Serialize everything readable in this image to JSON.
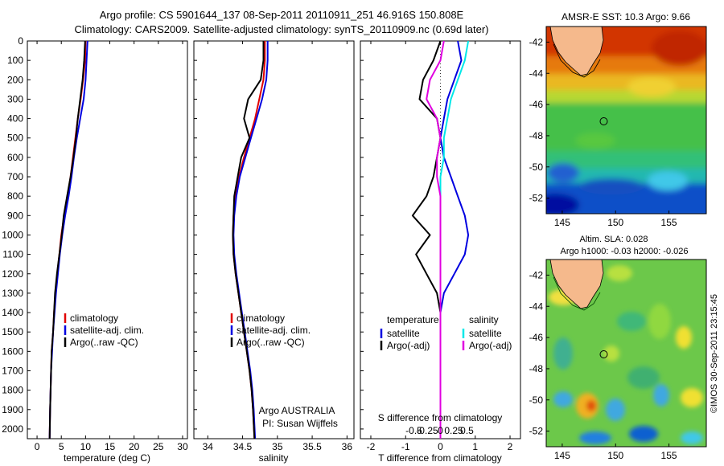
{
  "title_line1": "Argo profile: CS 5901644_137 08-Sep-2011 20110911_251 46.916S 150.808E",
  "title_line2": "Climatology: CARS2009. Satellite-adjusted climatology: synTS_20110909.nc (0.69d later)",
  "sst_title": "AMSR-E SST: 10.3 Argo: 9.66",
  "sla_title1": "Altim. SLA: 0.028",
  "sla_title2": "Argo h1000: -0.03 h2000: -0.026",
  "footer_vertical": "©IMOS 30-Sep-2011 23:15:45",
  "colors": {
    "climatology": "#e00000",
    "satellite": "#0000e0",
    "argo": "#000000",
    "sal_satellite": "#00e8e8",
    "sal_argo": "#e000e0",
    "land": "#f5b98c"
  },
  "chart_data": [
    {
      "type": "line",
      "xlabel": "temperature (deg C)",
      "ylabel": "",
      "xlim": [
        -2,
        31
      ],
      "ylim": [
        2050,
        0
      ],
      "xticks": [
        0,
        5,
        10,
        15,
        20,
        25,
        30
      ],
      "yticks": [
        0,
        100,
        200,
        300,
        400,
        500,
        600,
        700,
        800,
        900,
        1000,
        1100,
        1200,
        1300,
        1400,
        1500,
        1600,
        1700,
        1800,
        1900,
        2000
      ],
      "legend": [
        "climatology",
        "satellite-adj. clim.",
        "Argo(..raw -QC)"
      ],
      "legend_position": "lower-right",
      "series": [
        {
          "name": "climatology",
          "color_key": "climatology",
          "x": [
            10.0,
            9.9,
            9.5,
            9.0,
            8.4,
            7.9,
            7.4,
            6.9,
            6.3,
            5.6,
            5.0,
            4.6,
            4.2,
            3.8,
            3.5,
            3.3,
            3.0,
            2.9,
            2.8,
            2.7,
            2.6
          ],
          "y": [
            0,
            100,
            200,
            300,
            400,
            500,
            600,
            700,
            800,
            900,
            1000,
            1100,
            1200,
            1300,
            1400,
            1500,
            1600,
            1700,
            1800,
            1900,
            2050
          ]
        },
        {
          "name": "satellite-adj. clim.",
          "color_key": "satellite",
          "x": [
            10.4,
            10.2,
            10.0,
            9.6,
            8.9,
            8.2,
            7.6,
            7.1,
            6.5,
            5.8,
            5.2,
            4.7,
            4.3,
            3.9,
            3.6,
            3.3,
            3.1,
            2.9,
            2.8,
            2.7,
            2.6
          ],
          "y": [
            0,
            100,
            200,
            300,
            400,
            500,
            600,
            700,
            800,
            900,
            1000,
            1100,
            1200,
            1300,
            1400,
            1500,
            1600,
            1700,
            1800,
            1900,
            2050
          ]
        },
        {
          "name": "Argo(..raw -QC)",
          "color_key": "argo",
          "x": [
            9.9,
            9.7,
            9.4,
            8.9,
            8.4,
            8.0,
            7.5,
            6.9,
            6.2,
            5.5,
            5.1,
            4.6,
            4.1,
            3.7,
            3.5,
            3.3,
            3.0,
            2.9,
            2.8,
            2.7,
            2.6
          ],
          "y": [
            0,
            100,
            200,
            300,
            400,
            500,
            600,
            700,
            800,
            900,
            1000,
            1100,
            1200,
            1300,
            1400,
            1500,
            1600,
            1700,
            1800,
            1900,
            2050
          ]
        }
      ]
    },
    {
      "type": "line",
      "xlabel": "salinity",
      "ylabel": "",
      "xlim": [
        33.8,
        36.1
      ],
      "ylim": [
        2050,
        0
      ],
      "xticks": [
        34,
        34.5,
        35,
        35.5,
        36
      ],
      "xticklabels": [
        "34",
        "34.5",
        "35",
        "35.5",
        "36"
      ],
      "legend": [
        "climatology",
        "satellite-adj. clim.",
        "Argo(..raw -QC)"
      ],
      "legend_position": "lower-right",
      "annotation_line1": "Argo AUSTRALIA",
      "annotation_line2": "PI: Susan Wijffels",
      "series": [
        {
          "name": "climatology",
          "color_key": "climatology",
          "x": [
            34.82,
            34.82,
            34.8,
            34.74,
            34.68,
            34.6,
            34.52,
            34.45,
            34.4,
            34.37,
            34.36,
            34.37,
            34.4,
            34.44,
            34.48,
            34.52,
            34.56,
            34.6,
            34.63,
            34.65,
            34.67
          ],
          "y": [
            0,
            100,
            200,
            300,
            400,
            500,
            600,
            700,
            800,
            900,
            1000,
            1100,
            1200,
            1300,
            1400,
            1500,
            1600,
            1700,
            1800,
            1900,
            2050
          ]
        },
        {
          "name": "satellite-adj. clim.",
          "color_key": "satellite",
          "x": [
            34.86,
            34.86,
            34.84,
            34.78,
            34.7,
            34.62,
            34.54,
            34.46,
            34.41,
            34.38,
            34.37,
            34.38,
            34.41,
            34.45,
            34.49,
            34.53,
            34.57,
            34.61,
            34.64,
            34.66,
            34.68
          ],
          "y": [
            0,
            100,
            200,
            300,
            400,
            500,
            600,
            700,
            800,
            900,
            1000,
            1100,
            1200,
            1300,
            1400,
            1500,
            1600,
            1700,
            1800,
            1900,
            2050
          ]
        },
        {
          "name": "Argo(..raw -QC)",
          "color_key": "argo",
          "x": [
            34.8,
            34.8,
            34.76,
            34.58,
            34.52,
            34.6,
            34.48,
            34.43,
            34.38,
            34.37,
            34.36,
            34.37,
            34.4,
            34.44,
            34.48,
            34.52,
            34.56,
            34.6,
            34.63,
            34.65,
            34.67
          ],
          "y": [
            0,
            100,
            200,
            300,
            400,
            500,
            600,
            700,
            800,
            900,
            1000,
            1100,
            1200,
            1300,
            1400,
            1500,
            1600,
            1700,
            1800,
            1900,
            2050
          ]
        }
      ]
    },
    {
      "type": "line",
      "xlabel": "T difference from climatology",
      "x2label": "S difference from climatology",
      "ylabel": "",
      "xlim": [
        -2.3,
        2.3
      ],
      "ylim": [
        2050,
        0
      ],
      "xticks": [
        -2,
        -1,
        0,
        1,
        2
      ],
      "x2ticks": [
        -0.5,
        -0.25,
        0,
        0.25,
        0.5
      ],
      "x2ticklabels": [
        "-0.5",
        "-0.25",
        "0",
        "0.25",
        "0.5"
      ],
      "legend_header_left": "temperature",
      "legend_header_right": "salinity",
      "legend": [
        "satellite",
        "Argo(-adj)",
        "satellite",
        "Argo(-adj)"
      ],
      "legend_position": "lower-right",
      "series": [
        {
          "name": "satellite",
          "group": "temperature",
          "color_key": "satellite",
          "x": [
            0.5,
            0.6,
            0.4,
            0.2,
            0.1,
            0.0,
            0.1,
            0.3,
            0.5,
            0.7,
            0.8,
            0.7,
            0.4,
            0.1,
            0.0,
            0.0,
            0.0,
            0.0,
            0.0,
            0.0,
            0.0
          ],
          "y": [
            0,
            100,
            200,
            300,
            400,
            500,
            600,
            700,
            800,
            900,
            1000,
            1100,
            1200,
            1300,
            1400,
            1500,
            1600,
            1700,
            1800,
            1900,
            2050
          ]
        },
        {
          "name": "Argo(-adj)",
          "group": "temperature",
          "color_key": "argo",
          "x": [
            0.0,
            -0.2,
            -0.5,
            -0.6,
            -0.1,
            0.0,
            -0.1,
            -0.2,
            -0.4,
            -0.8,
            -0.3,
            -0.7,
            -0.4,
            -0.1,
            0.0,
            0.0,
            0.0,
            0.0,
            0.0,
            0.0,
            0.0
          ],
          "y": [
            0,
            100,
            200,
            300,
            400,
            500,
            600,
            700,
            800,
            900,
            1000,
            1100,
            1200,
            1300,
            1400,
            1500,
            1600,
            1700,
            1800,
            1900,
            2050
          ]
        },
        {
          "name": "satellite",
          "group": "salinity",
          "color_key": "sal_satellite",
          "x": [
            0.8,
            0.7,
            0.5,
            0.3,
            0.2,
            0.1,
            0.1,
            0.0,
            0.0,
            0.0,
            0.0,
            0.0,
            0.0,
            0.0,
            0.0,
            0.0,
            0.0,
            0.0,
            0.0,
            0.0,
            0.0
          ],
          "y": [
            0,
            100,
            200,
            300,
            400,
            500,
            600,
            700,
            800,
            900,
            1000,
            1100,
            1200,
            1300,
            1400,
            1500,
            1600,
            1700,
            1800,
            1900,
            2050
          ]
        },
        {
          "name": "Argo(-adj)",
          "group": "salinity",
          "color_key": "sal_argo",
          "x": [
            0.1,
            0.0,
            -0.3,
            -0.4,
            -0.1,
            0.0,
            -0.1,
            -0.1,
            0.0,
            0.0,
            0.0,
            0.0,
            0.0,
            0.0,
            0.0,
            0.0,
            0.0,
            0.0,
            0.0,
            0.0,
            0.0
          ],
          "y": [
            0,
            100,
            200,
            300,
            400,
            500,
            600,
            700,
            800,
            900,
            1000,
            1100,
            1200,
            1300,
            1400,
            1500,
            1600,
            1700,
            1800,
            1900,
            2050
          ]
        }
      ]
    },
    {
      "type": "heatmap",
      "title": "AMSR-E SST: 10.3 Argo: 9.66",
      "xlim": [
        143.5,
        158.5
      ],
      "ylim": [
        -53,
        -41
      ],
      "xticks": [
        145,
        150,
        155
      ],
      "yticks": [
        -42,
        -44,
        -46,
        -48,
        -50,
        -52
      ],
      "marker": {
        "lon": 150.808,
        "lat": -46.916
      }
    },
    {
      "type": "heatmap",
      "title": "Altim. SLA: 0.028",
      "subtitle": "Argo h1000: -0.03 h2000: -0.026",
      "xlim": [
        143.5,
        158.5
      ],
      "ylim": [
        -53,
        -41
      ],
      "xticks": [
        145,
        150,
        155
      ],
      "yticks": [
        -42,
        -44,
        -46,
        -48,
        -50,
        -52
      ],
      "marker": {
        "lon": 150.808,
        "lat": -46.916
      }
    }
  ]
}
